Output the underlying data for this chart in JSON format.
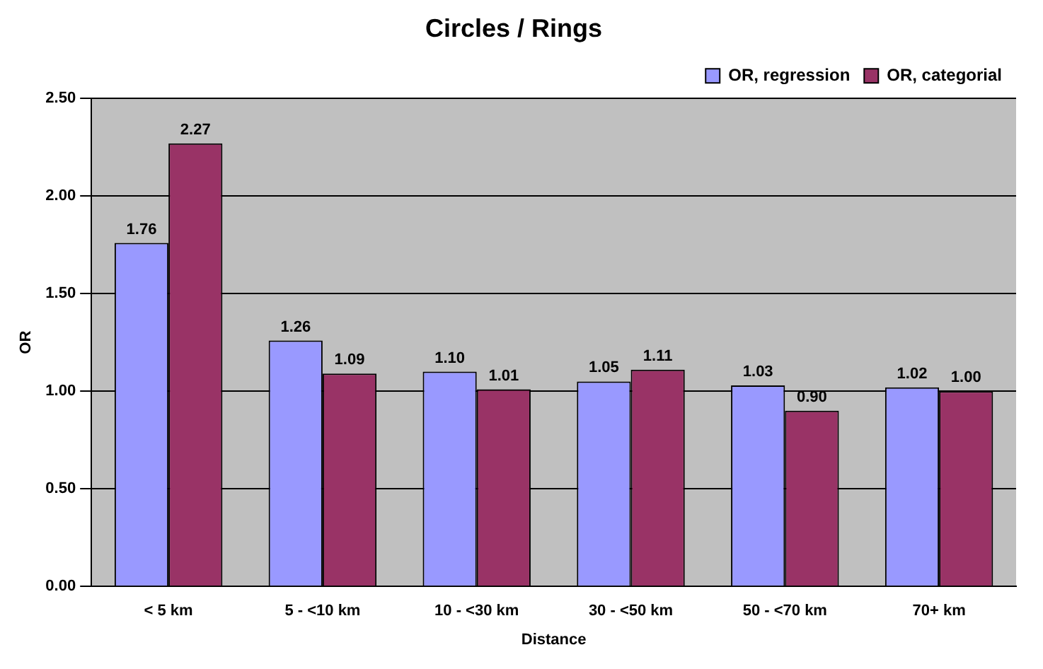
{
  "chart_data": {
    "type": "bar",
    "title": "Circles / Rings",
    "xlabel": "Distance",
    "ylabel": "OR",
    "categories": [
      "< 5 km",
      "5 - <10 km",
      "10 - <30 km",
      "30 - <50 km",
      "50 - <70 km",
      "70+ km"
    ],
    "series": [
      {
        "name": "OR, regression",
        "color": "#9999ff",
        "values": [
          1.76,
          1.26,
          1.1,
          1.05,
          1.03,
          1.02
        ],
        "value_labels": [
          "1.76",
          "1.26",
          "1.10",
          "1.05",
          "1.03",
          "1.02"
        ]
      },
      {
        "name": "OR, categorial",
        "color": "#993366",
        "values": [
          2.27,
          1.09,
          1.01,
          1.11,
          0.9,
          1.0
        ],
        "value_labels": [
          "2.27",
          "1.09",
          "1.01",
          "1.11",
          "0.90",
          "1.00"
        ]
      }
    ],
    "ylim": [
      0,
      2.5
    ],
    "yticks": [
      {
        "value": 0,
        "label": "0.00"
      },
      {
        "value": 0.5,
        "label": "0.50"
      },
      {
        "value": 1,
        "label": "1.00"
      },
      {
        "value": 1.5,
        "label": "1.50"
      },
      {
        "value": 2,
        "label": "2.00"
      },
      {
        "value": 2.5,
        "label": "2.50"
      }
    ],
    "grid": "y",
    "legend": "top right"
  }
}
